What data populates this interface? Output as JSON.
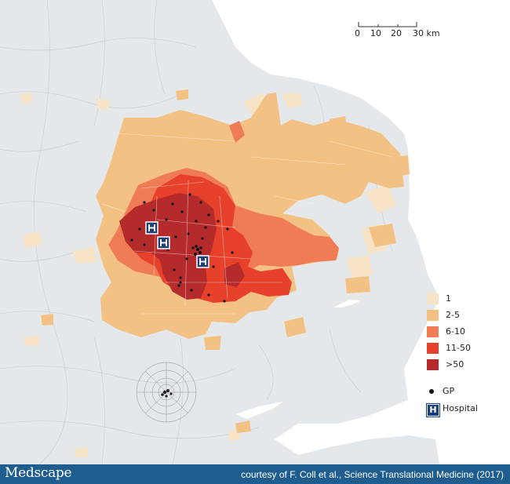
{
  "map": {
    "scale": {
      "ticks": [
        "0",
        "10",
        "20",
        "30 km"
      ]
    },
    "legend": {
      "items": [
        {
          "label": "1",
          "color": "#f7e3c6"
        },
        {
          "label": "2-5",
          "color": "#f4c185"
        },
        {
          "label": "6-10",
          "color": "#f07c55"
        },
        {
          "label": "11-50",
          "color": "#e8412b"
        },
        {
          "label": ">50",
          "color": "#b52a2a"
        }
      ]
    },
    "markers": {
      "gp_label": "GP",
      "hospital_label": "Hospital",
      "hospital_symbol": "H"
    },
    "colors": {
      "land_background": "#e4e8ea",
      "sea": "#ffffff",
      "boundary": "#c9cfd3",
      "hospital": "#1d3f7a"
    }
  },
  "footer": {
    "brand": "Medscape",
    "credit": "courtesy of F. Coll et al., Science Translational Medicine (2017)",
    "color": "#1f5d8f"
  }
}
